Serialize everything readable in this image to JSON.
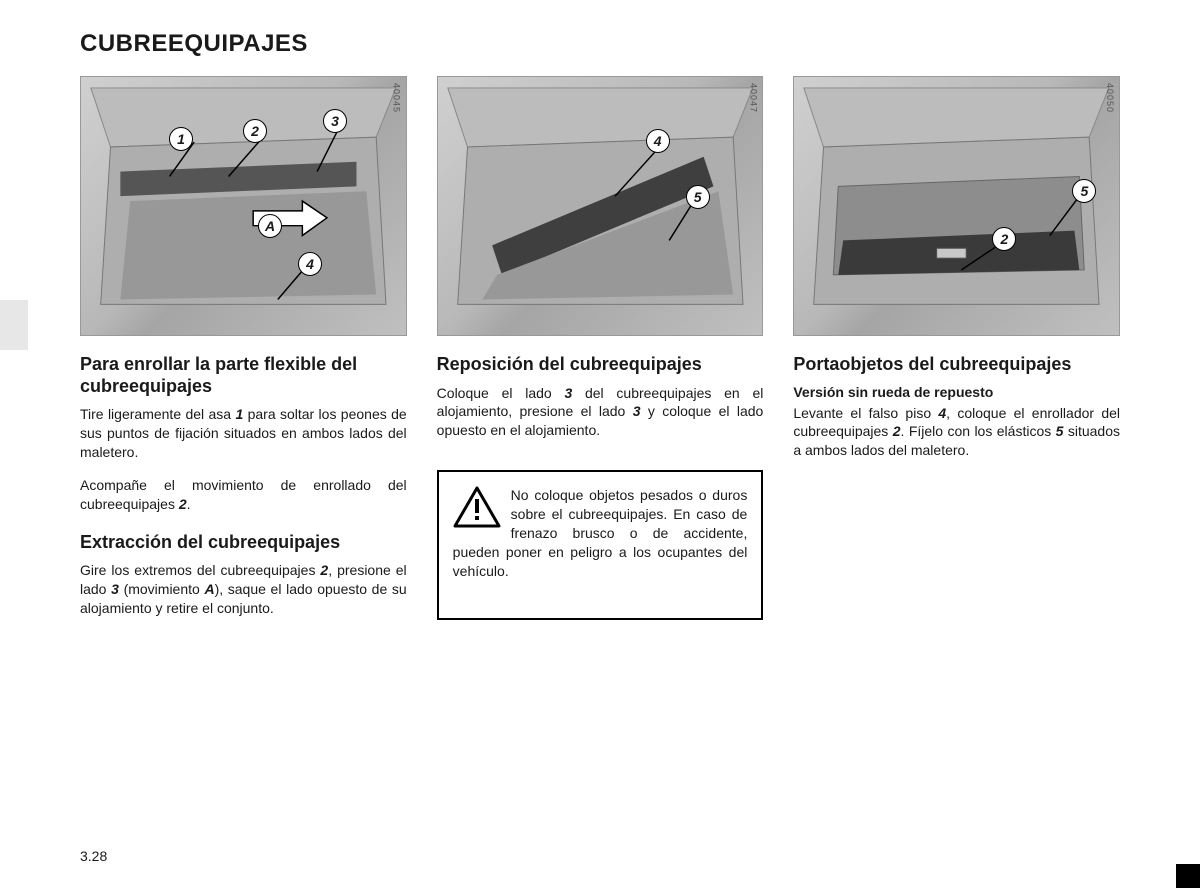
{
  "title": "CUBREEQUIPAJES",
  "pageNumber": "3.28",
  "figures": {
    "f1": {
      "ref": "40045",
      "callouts": {
        "c1": "1",
        "c2": "2",
        "c3": "3",
        "cA": "A",
        "c4": "4"
      }
    },
    "f2": {
      "ref": "40047",
      "callouts": {
        "c4": "4",
        "c5": "5"
      }
    },
    "f3": {
      "ref": "40050",
      "callouts": {
        "c2": "2",
        "c5": "5"
      }
    }
  },
  "col1": {
    "h1": "Para enrollar la parte flexible del cubreequipajes",
    "p1": "Tire ligeramente del asa <span class='n'>1</span> para soltar los peones de sus puntos de fijación situados en ambos lados del maletero.",
    "p2": "Acompañe el movimiento de enrollado del cubreequipajes <span class='n'>2</span>.",
    "h2": "Extracción del cubreequipajes",
    "p3": "Gire los extremos del cubreequipajes <span class='n'>2</span>, presione el lado <span class='n'>3</span> (movimiento <span class='n'>A</span>), saque el lado opuesto de su alojamiento y retire el conjunto."
  },
  "col2": {
    "h1": "Reposición del cubreequipajes",
    "p1": "Coloque el lado <span class='n'>3</span> del cubreequipajes en el alojamiento, presione el lado <span class='n'>3</span> y coloque el lado opuesto en el alojamiento.",
    "warning": "No coloque objetos pesados o duros sobre el cubreequipajes. En caso de frenazo brusco o de accidente, pueden poner en peligro a los ocupantes del vehículo."
  },
  "col3": {
    "h1": "Portaobjetos del cubreequipajes",
    "sub": "Versión sin rueda de repuesto",
    "p1": "Levante el falso piso <span class='n'>4</span>, coloque el enrollador del cubreequipajes <span class='n'>2</span>. Fíjelo con los elásticos <span class='n'>5</span> situados a ambos lados del maletero."
  }
}
